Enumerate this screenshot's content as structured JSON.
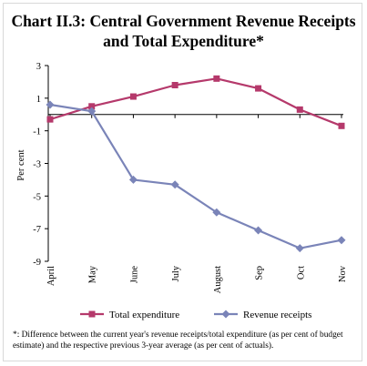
{
  "header": {
    "title_line1": "Chart II.3: Central Government Revenue Receipts",
    "title_line2": "and Total Expenditure*"
  },
  "footnote": "*: Difference between the current year's revenue receipts/total expenditure (as per cent of budget estimate) and the respective previous 3-year average (as per cent of actuals).",
  "chart_data": {
    "type": "line",
    "title": "Chart II.3: Central Government Revenue Receipts and Total Expenditure*",
    "xlabel": "",
    "ylabel": "Per cent",
    "categories": [
      "April",
      "May",
      "June",
      "July",
      "August",
      "Sep",
      "Oct",
      "Nov"
    ],
    "ylim": [
      -9,
      3
    ],
    "yticks": [
      3,
      1,
      -1,
      -3,
      -5,
      -7,
      -9
    ],
    "grid": false,
    "legend_position": "bottom",
    "series": [
      {
        "name": "Total expenditure",
        "color": "#b5396b",
        "marker": "square",
        "values": [
          -0.3,
          0.5,
          1.1,
          1.8,
          2.2,
          1.6,
          0.3,
          -0.7
        ]
      },
      {
        "name": "Revenue receipts",
        "color": "#7a84b8",
        "marker": "diamond",
        "values": [
          0.6,
          0.2,
          -4.0,
          -4.3,
          -6.0,
          -7.1,
          -8.2,
          -7.7
        ]
      }
    ]
  }
}
